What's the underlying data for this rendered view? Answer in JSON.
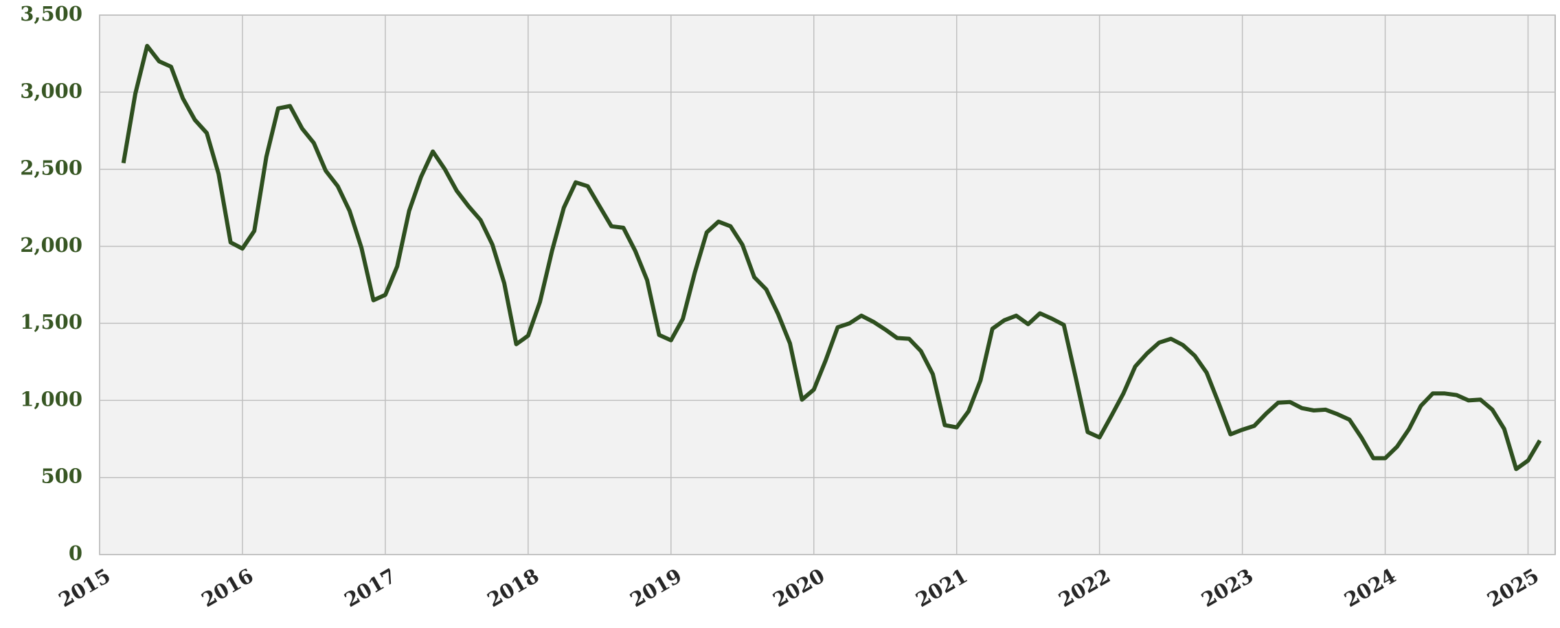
{
  "chart_data": {
    "type": "line",
    "x": [
      2015.167,
      2015.25,
      2015.333,
      2015.417,
      2015.5,
      2015.583,
      2015.667,
      2015.75,
      2015.833,
      2015.917,
      2016,
      2016.083,
      2016.167,
      2016.25,
      2016.333,
      2016.417,
      2016.5,
      2016.583,
      2016.667,
      2016.75,
      2016.833,
      2016.917,
      2017,
      2017.083,
      2017.167,
      2017.25,
      2017.333,
      2017.417,
      2017.5,
      2017.583,
      2017.667,
      2017.75,
      2017.833,
      2017.917,
      2018,
      2018.083,
      2018.167,
      2018.25,
      2018.333,
      2018.417,
      2018.5,
      2018.583,
      2018.667,
      2018.75,
      2018.833,
      2018.917,
      2019,
      2019.083,
      2019.167,
      2019.25,
      2019.333,
      2019.417,
      2019.5,
      2019.583,
      2019.667,
      2019.75,
      2019.833,
      2019.917,
      2020,
      2020.083,
      2020.167,
      2020.25,
      2020.333,
      2020.417,
      2020.5,
      2020.583,
      2020.667,
      2020.75,
      2020.833,
      2020.917,
      2021,
      2021.083,
      2021.167,
      2021.25,
      2021.333,
      2021.417,
      2021.5,
      2021.583,
      2021.667,
      2021.75,
      2021.833,
      2021.917,
      2022,
      2022.083,
      2022.167,
      2022.25,
      2022.333,
      2022.417,
      2022.5,
      2022.583,
      2022.667,
      2022.75,
      2022.833,
      2022.917,
      2023,
      2023.083,
      2023.167,
      2023.25,
      2023.333,
      2023.417,
      2023.5,
      2023.583,
      2023.667,
      2023.75,
      2023.833,
      2023.917,
      2024,
      2024.083,
      2024.167,
      2024.25,
      2024.333,
      2024.417,
      2024.5,
      2024.583,
      2024.667,
      2024.75,
      2024.833,
      2024.917,
      2025,
      2025.083
    ],
    "series": [
      {
        "color": "#2e4f1f",
        "values": [
          2540,
          2990,
          3300,
          3200,
          3165,
          2960,
          2820,
          2735,
          2470,
          2025,
          1985,
          2100,
          2580,
          2895,
          2910,
          2765,
          2670,
          2490,
          2390,
          2230,
          1990,
          1650,
          1685,
          1870,
          2230,
          2450,
          2615,
          2500,
          2360,
          2260,
          2170,
          2010,
          1760,
          1365,
          1420,
          1640,
          1970,
          2250,
          2415,
          2390,
          2260,
          2130,
          2120,
          1970,
          1780,
          1425,
          1390,
          1530,
          1830,
          2090,
          2160,
          2130,
          2010,
          1800,
          1720,
          1560,
          1370,
          1005,
          1070,
          1260,
          1475,
          1500,
          1550,
          1510,
          1460,
          1405,
          1400,
          1320,
          1170,
          840,
          825,
          930,
          1130,
          1465,
          1520,
          1550,
          1495,
          1565,
          1530,
          1490,
          1150,
          795,
          760,
          900,
          1045,
          1220,
          1305,
          1375,
          1400,
          1360,
          1290,
          1180,
          985,
          780,
          810,
          835,
          915,
          985,
          990,
          950,
          935,
          940,
          910,
          875,
          760,
          625,
          625,
          700,
          815,
          965,
          1045,
          1045,
          1035,
          1000,
          1005,
          940,
          815,
          555,
          610,
          740
        ]
      }
    ],
    "xlim": [
      2015,
      2025.19
    ],
    "xticks": [
      2015,
      2016,
      2017,
      2018,
      2019,
      2020,
      2021,
      2022,
      2023,
      2024,
      2025
    ],
    "ylim": [
      0,
      3500
    ],
    "yticks": [
      0,
      500,
      {
        "value": 1000,
        "label": "1,000"
      },
      {
        "value": 1500,
        "label": "1,500"
      },
      {
        "value": 2000,
        "label": "2,000"
      },
      {
        "value": 2500,
        "label": "2,500"
      },
      {
        "value": 3000,
        "label": "3,000"
      },
      {
        "value": 3500,
        "label": "3,500"
      }
    ],
    "grid": true
  }
}
